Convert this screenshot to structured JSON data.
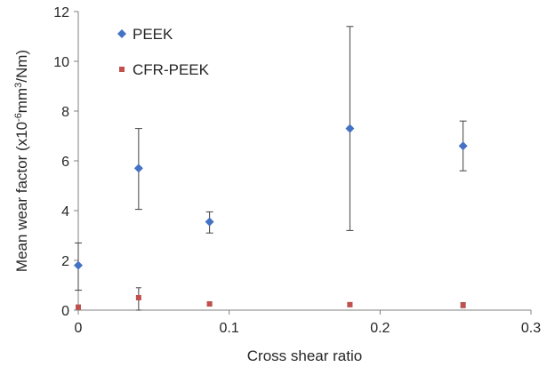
{
  "chart_data": {
    "type": "scatter",
    "xlabel": "Cross shear ratio",
    "ylabel_parts": [
      "Mean wear factor (x10",
      "-6",
      "mm",
      "3",
      "/Nm)"
    ],
    "xlim": [
      0,
      0.3
    ],
    "ylim": [
      0,
      12
    ],
    "x_ticks": [
      "0",
      "0.1",
      "0.2",
      "0.3"
    ],
    "y_ticks": [
      "0",
      "2",
      "4",
      "6",
      "8",
      "10",
      "12"
    ],
    "grid": false,
    "legend_position": "top-left",
    "series": [
      {
        "name": "PEEK",
        "marker": "diamond",
        "color": "#4472C4",
        "points": [
          {
            "x": 0.0,
            "y": 1.8,
            "err_low": 0.8,
            "err_high": 2.7
          },
          {
            "x": 0.04,
            "y": 5.7,
            "err_low": 4.05,
            "err_high": 7.3
          },
          {
            "x": 0.087,
            "y": 3.55,
            "err_low": 3.1,
            "err_high": 3.95
          },
          {
            "x": 0.18,
            "y": 7.3,
            "err_low": 3.2,
            "err_high": 11.4
          },
          {
            "x": 0.255,
            "y": 6.6,
            "err_low": 5.6,
            "err_high": 7.6
          }
        ]
      },
      {
        "name": "CFR-PEEK",
        "marker": "square",
        "color": "#C0504D",
        "points": [
          {
            "x": 0.0,
            "y": 0.12,
            "err_low": 0.05,
            "err_high": 0.2
          },
          {
            "x": 0.04,
            "y": 0.5,
            "err_low": 0.0,
            "err_high": 0.9
          },
          {
            "x": 0.087,
            "y": 0.25,
            "err_low": 0.18,
            "err_high": 0.32
          },
          {
            "x": 0.18,
            "y": 0.22,
            "err_low": 0.15,
            "err_high": 0.29
          },
          {
            "x": 0.255,
            "y": 0.2,
            "err_low": 0.1,
            "err_high": 0.3
          }
        ]
      }
    ]
  }
}
